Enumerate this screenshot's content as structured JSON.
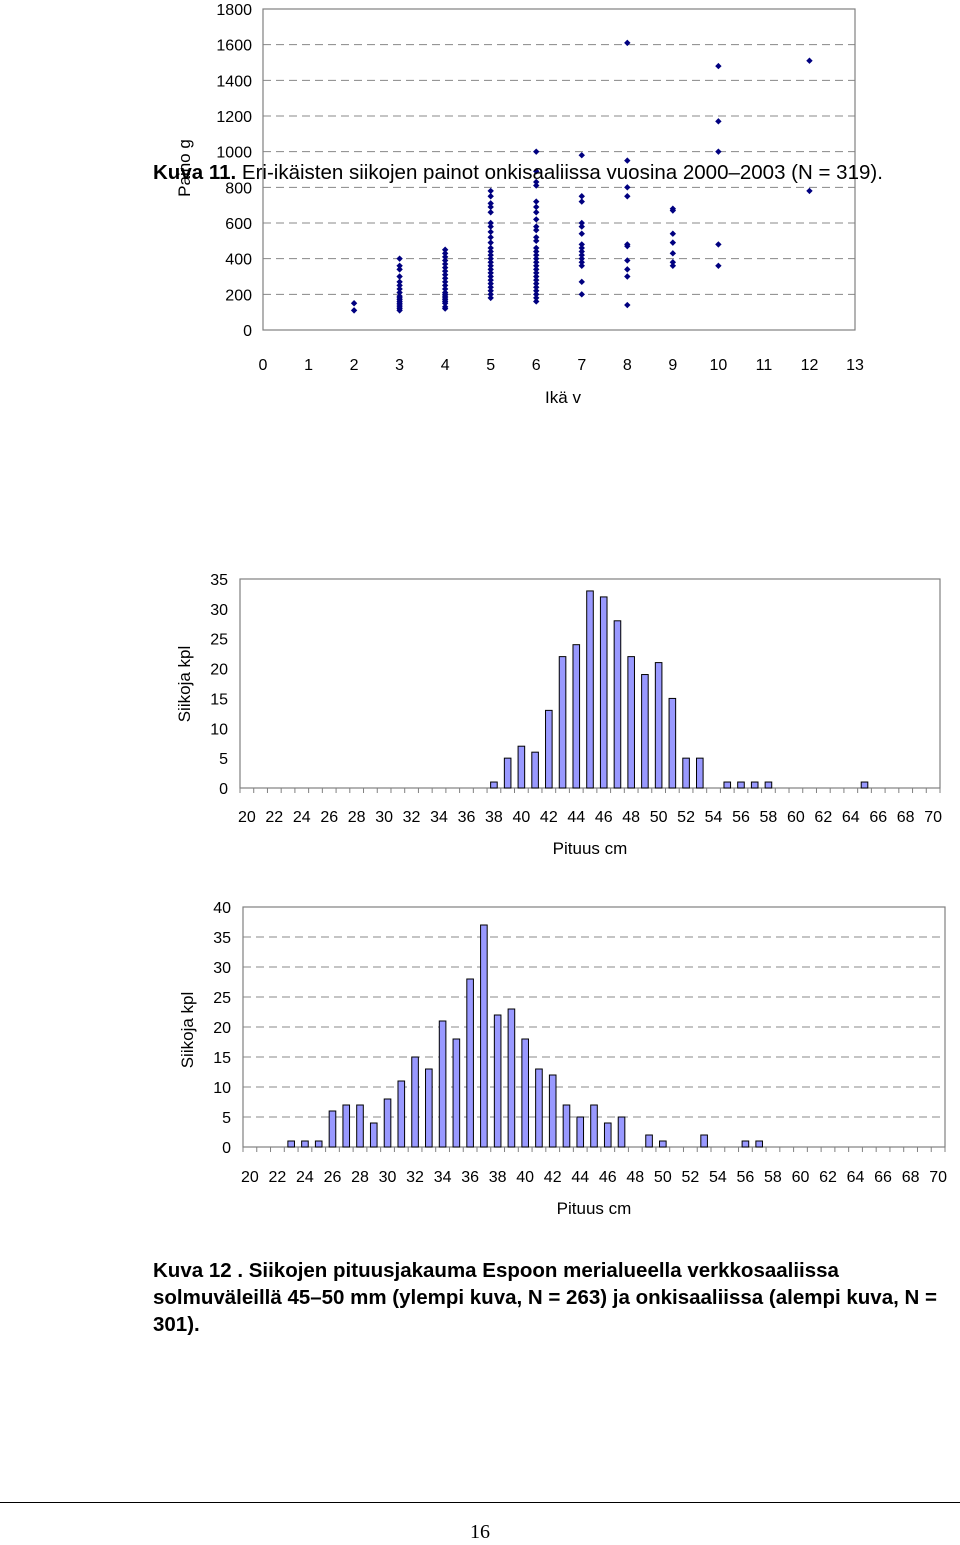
{
  "chart_data": [
    {
      "type": "scatter",
      "title": "",
      "xlabel": "Ikä v",
      "ylabel": "Paino g",
      "xlim": [
        0,
        13
      ],
      "ylim": [
        0,
        1800
      ],
      "xticks": [
        "0",
        "1",
        "2",
        "3",
        "4",
        "5",
        "6",
        "7",
        "8",
        "9",
        "10",
        "11",
        "12",
        "13"
      ],
      "yticks": [
        "0",
        "200",
        "400",
        "600",
        "800",
        "1000",
        "1200",
        "1400",
        "1600",
        "1800"
      ],
      "grid": "horizontal dashed",
      "marker_color": "#000080",
      "points": [
        [
          2,
          150
        ],
        [
          2,
          110
        ],
        [
          3,
          400
        ],
        [
          3,
          360
        ],
        [
          3,
          340
        ],
        [
          3,
          300
        ],
        [
          3,
          270
        ],
        [
          3,
          250
        ],
        [
          3,
          230
        ],
        [
          3,
          210
        ],
        [
          3,
          190
        ],
        [
          3,
          180
        ],
        [
          3,
          170
        ],
        [
          3,
          160
        ],
        [
          3,
          150
        ],
        [
          3,
          140
        ],
        [
          3,
          130
        ],
        [
          3,
          120
        ],
        [
          3,
          110
        ],
        [
          4,
          450
        ],
        [
          4,
          430
        ],
        [
          4,
          410
        ],
        [
          4,
          390
        ],
        [
          4,
          370
        ],
        [
          4,
          350
        ],
        [
          4,
          330
        ],
        [
          4,
          310
        ],
        [
          4,
          290
        ],
        [
          4,
          270
        ],
        [
          4,
          250
        ],
        [
          4,
          230
        ],
        [
          4,
          210
        ],
        [
          4,
          200
        ],
        [
          4,
          190
        ],
        [
          4,
          180
        ],
        [
          4,
          170
        ],
        [
          4,
          160
        ],
        [
          4,
          150
        ],
        [
          4,
          130
        ],
        [
          4,
          120
        ],
        [
          5,
          780
        ],
        [
          5,
          750
        ],
        [
          5,
          710
        ],
        [
          5,
          690
        ],
        [
          5,
          660
        ],
        [
          5,
          600
        ],
        [
          5,
          580
        ],
        [
          5,
          550
        ],
        [
          5,
          520
        ],
        [
          5,
          490
        ],
        [
          5,
          460
        ],
        [
          5,
          440
        ],
        [
          5,
          420
        ],
        [
          5,
          400
        ],
        [
          5,
          380
        ],
        [
          5,
          360
        ],
        [
          5,
          340
        ],
        [
          5,
          320
        ],
        [
          5,
          300
        ],
        [
          5,
          280
        ],
        [
          5,
          260
        ],
        [
          5,
          240
        ],
        [
          5,
          220
        ],
        [
          5,
          200
        ],
        [
          5,
          180
        ],
        [
          6,
          1000
        ],
        [
          6,
          890
        ],
        [
          6,
          830
        ],
        [
          6,
          810
        ],
        [
          6,
          720
        ],
        [
          6,
          690
        ],
        [
          6,
          660
        ],
        [
          6,
          620
        ],
        [
          6,
          580
        ],
        [
          6,
          560
        ],
        [
          6,
          520
        ],
        [
          6,
          500
        ],
        [
          6,
          460
        ],
        [
          6,
          440
        ],
        [
          6,
          420
        ],
        [
          6,
          400
        ],
        [
          6,
          380
        ],
        [
          6,
          360
        ],
        [
          6,
          340
        ],
        [
          6,
          320
        ],
        [
          6,
          300
        ],
        [
          6,
          280
        ],
        [
          6,
          260
        ],
        [
          6,
          240
        ],
        [
          6,
          220
        ],
        [
          6,
          200
        ],
        [
          6,
          180
        ],
        [
          6,
          160
        ],
        [
          7,
          980
        ],
        [
          7,
          750
        ],
        [
          7,
          720
        ],
        [
          7,
          600
        ],
        [
          7,
          580
        ],
        [
          7,
          540
        ],
        [
          7,
          480
        ],
        [
          7,
          460
        ],
        [
          7,
          440
        ],
        [
          7,
          420
        ],
        [
          7,
          400
        ],
        [
          7,
          380
        ],
        [
          7,
          360
        ],
        [
          7,
          270
        ],
        [
          7,
          200
        ],
        [
          8,
          1610
        ],
        [
          8,
          950
        ],
        [
          8,
          800
        ],
        [
          8,
          750
        ],
        [
          8,
          480
        ],
        [
          8,
          470
        ],
        [
          8,
          390
        ],
        [
          8,
          340
        ],
        [
          8,
          300
        ],
        [
          8,
          140
        ],
        [
          9,
          680
        ],
        [
          9,
          670
        ],
        [
          9,
          540
        ],
        [
          9,
          490
        ],
        [
          9,
          430
        ],
        [
          9,
          380
        ],
        [
          9,
          360
        ],
        [
          10,
          1480
        ],
        [
          10,
          1170
        ],
        [
          10,
          1000
        ],
        [
          10,
          480
        ],
        [
          10,
          360
        ],
        [
          12,
          1510
        ],
        [
          12,
          780
        ]
      ]
    },
    {
      "type": "bar",
      "title": "",
      "xlabel": "Pituus cm",
      "ylabel": "Siikoja kpl",
      "ylim": [
        0,
        35
      ],
      "yticks": [
        "0",
        "5",
        "10",
        "15",
        "20",
        "25",
        "30",
        "35"
      ],
      "xticks": [
        "20",
        "22",
        "24",
        "26",
        "28",
        "30",
        "32",
        "34",
        "36",
        "38",
        "40",
        "42",
        "44",
        "46",
        "48",
        "50",
        "52",
        "54",
        "56",
        "58",
        "60",
        "62",
        "64",
        "66",
        "68",
        "70"
      ],
      "categories": [
        20,
        21,
        22,
        23,
        24,
        25,
        26,
        27,
        28,
        29,
        30,
        31,
        32,
        33,
        34,
        35,
        36,
        37,
        38,
        39,
        40,
        41,
        42,
        43,
        44,
        45,
        46,
        47,
        48,
        49,
        50,
        51,
        52,
        53,
        54,
        55,
        56,
        57,
        58,
        59,
        60,
        61,
        62,
        63,
        64,
        65,
        66,
        67,
        68,
        69,
        70
      ],
      "values": [
        0,
        0,
        0,
        0,
        0,
        0,
        0,
        0,
        0,
        0,
        0,
        0,
        0,
        0,
        0,
        0,
        0,
        0,
        1,
        5,
        7,
        6,
        13,
        22,
        24,
        33,
        32,
        28,
        22,
        19,
        21,
        15,
        5,
        5,
        0,
        1,
        1,
        1,
        1,
        0,
        0,
        0,
        0,
        0,
        0,
        1,
        0,
        0,
        0,
        0,
        0
      ],
      "bar_color": "#9999FF",
      "grid": "none"
    },
    {
      "type": "bar",
      "title": "",
      "xlabel": "Pituus cm",
      "ylabel": "Siikoja kpl",
      "ylim": [
        0,
        40
      ],
      "yticks": [
        "0",
        "5",
        "10",
        "15",
        "20",
        "25",
        "30",
        "35",
        "40"
      ],
      "xticks": [
        "20",
        "22",
        "24",
        "26",
        "28",
        "30",
        "32",
        "34",
        "36",
        "38",
        "40",
        "42",
        "44",
        "46",
        "48",
        "50",
        "52",
        "54",
        "56",
        "58",
        "60",
        "62",
        "64",
        "66",
        "68",
        "70"
      ],
      "categories": [
        20,
        21,
        22,
        23,
        24,
        25,
        26,
        27,
        28,
        29,
        30,
        31,
        32,
        33,
        34,
        35,
        36,
        37,
        38,
        39,
        40,
        41,
        42,
        43,
        44,
        45,
        46,
        47,
        48,
        49,
        50,
        51,
        52,
        53,
        54,
        55,
        56,
        57,
        58,
        59,
        60,
        61,
        62,
        63,
        64,
        65,
        66,
        67,
        68,
        69,
        70
      ],
      "values": [
        0,
        0,
        0,
        1,
        1,
        1,
        6,
        7,
        7,
        4,
        8,
        11,
        15,
        13,
        21,
        18,
        28,
        37,
        22,
        23,
        18,
        13,
        12,
        7,
        5,
        7,
        4,
        5,
        0,
        2,
        1,
        0,
        0,
        2,
        0,
        0,
        1,
        1,
        0,
        0,
        0,
        0,
        0,
        0,
        0,
        0,
        0,
        0,
        0,
        0,
        0
      ],
      "bar_color": "#9999FF",
      "grid": "horizontal dashed"
    }
  ],
  "captions": {
    "fig11_label": "Kuva 11.",
    "fig11_text": " Eri-ikäisten siikojen painot onkisaaliissa vuosina 2000–2003 (N = 319).",
    "fig12_label": "Kuva 12 .",
    "fig12_text": " Siikojen pituusjakauma Espoon merialueella verkkosaaliissa solmuväleillä 45–50 mm (ylempi kuva, N = 263) ja onkisaaliissa (alempi kuva, N = 301)."
  },
  "page_number": "16"
}
